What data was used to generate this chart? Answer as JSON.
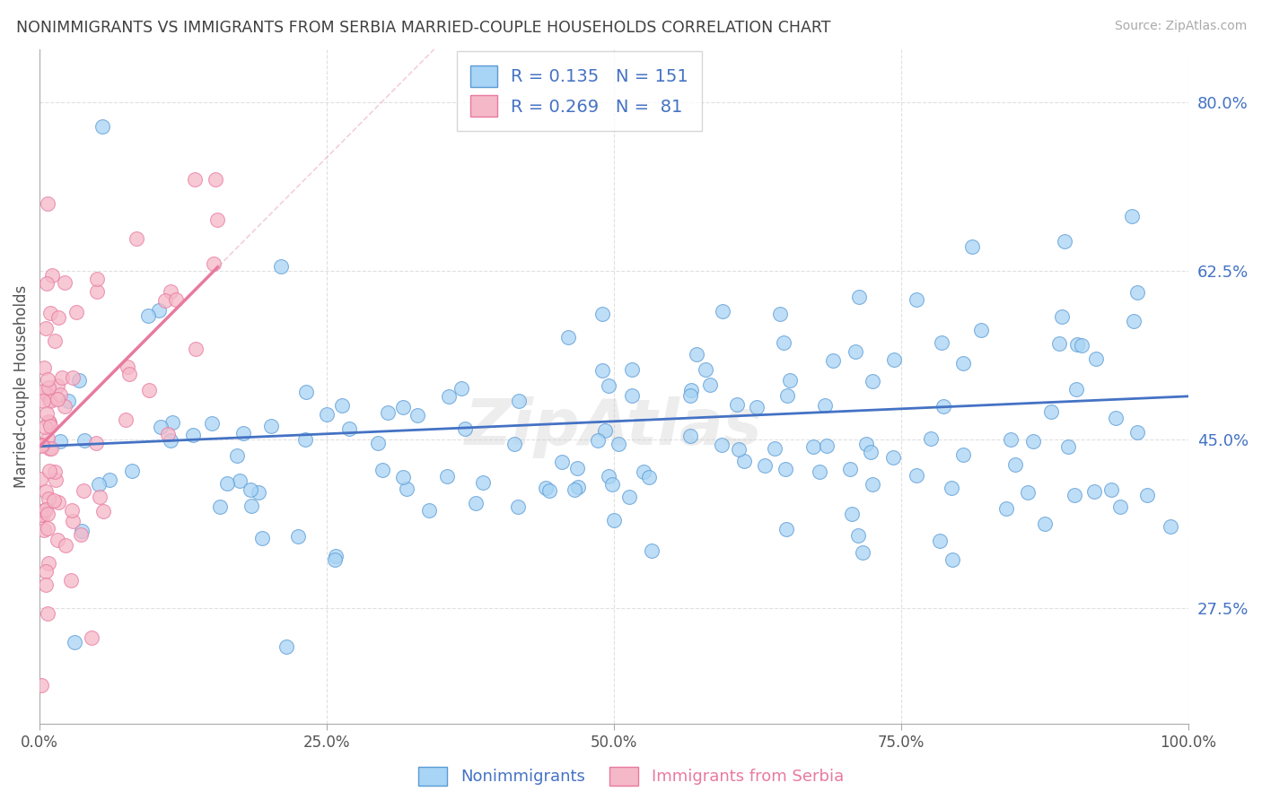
{
  "title": "NONIMMIGRANTS VS IMMIGRANTS FROM SERBIA MARRIED-COUPLE HOUSEHOLDS CORRELATION CHART",
  "source": "Source: ZipAtlas.com",
  "ylabel": "Married-couple Households",
  "xlim": [
    0,
    1.0
  ],
  "ylim": [
    0.155,
    0.855
  ],
  "xticks": [
    0.0,
    0.25,
    0.5,
    0.75,
    1.0
  ],
  "xticklabels": [
    "0.0%",
    "25.0%",
    "50.0%",
    "75.0%",
    "100.0%"
  ],
  "yticks": [
    0.275,
    0.45,
    0.625,
    0.8
  ],
  "yticklabels": [
    "27.5%",
    "45.0%",
    "62.5%",
    "80.0%"
  ],
  "legend_labels": [
    "Nonimmigrants",
    "Immigrants from Serbia"
  ],
  "R_nonimm": 0.135,
  "N_nonimm": 151,
  "R_imm": 0.269,
  "N_imm": 81,
  "color_nonimm": "#a8d4f5",
  "color_imm": "#f5b8c8",
  "edge_nonimm": "#5b9bd5",
  "edge_imm": "#e87aa0",
  "line_color_nonimm": "#4472c4",
  "line_color_imm": "#e87aa0",
  "line_color_imm_dash": "#e8a0b8",
  "text_color": "#4472c4",
  "title_color": "#404040",
  "source_color": "#aaaaaa",
  "watermark": "ZipAtlas",
  "background_color": "#ffffff",
  "grid_color": "#cccccc"
}
